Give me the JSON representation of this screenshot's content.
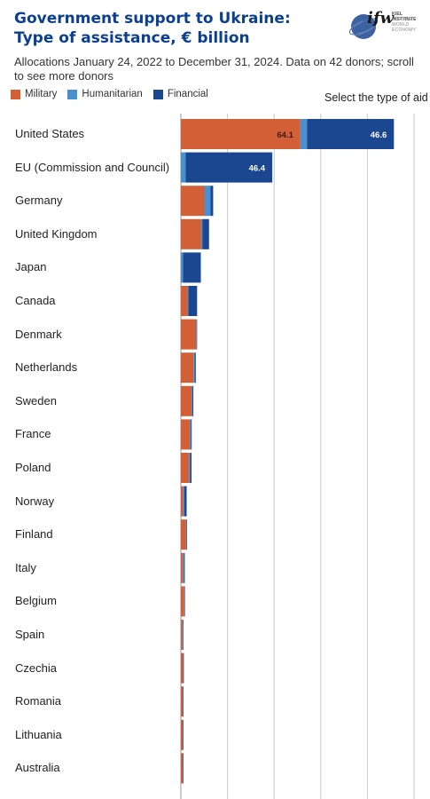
{
  "header": {
    "title": "Government support to Ukraine: Type of assistance, € billion",
    "subtitle": "Allocations January 24, 2022 to December 31, 2024. Data on 42 donors; scroll to see more donors",
    "logo_text": "ifw",
    "logo_line1": "KIEL INSTITUTE",
    "logo_line2": "FOR THE WORLD ECONOMY",
    "select_label": "Select the type of aid"
  },
  "legend": [
    {
      "label": "Military",
      "color": "#d35f37"
    },
    {
      "label": "Humanitarian",
      "color": "#4a90cf"
    },
    {
      "label": "Financial",
      "color": "#1b4791"
    }
  ],
  "chart_data": {
    "type": "bar",
    "orientation": "horizontal",
    "stacked": true,
    "title": "Government support to Ukraine: Type of assistance, € billion",
    "xlim": [
      0,
      125
    ],
    "grid": true,
    "legend_position": "top-left",
    "categories": [
      "United States",
      "EU (Commission and Council)",
      "Germany",
      "United Kingdom",
      "Japan",
      "Canada",
      "Denmark",
      "Netherlands",
      "Sweden",
      "France",
      "Poland",
      "Norway",
      "Finland",
      "Italy",
      "Belgium",
      "Spain",
      "Czechia",
      "Romania",
      "Lithuania",
      "Australia"
    ],
    "series": [
      {
        "name": "Military",
        "color": "#d35f37",
        "values": [
          64.1,
          0,
          12.6,
          10.9,
          0,
          3.6,
          8.2,
          6.8,
          5.7,
          4.8,
          4.4,
          1.2,
          2.8,
          1.1,
          1.8,
          0.8,
          1.2,
          1.0,
          1.0,
          1.0
        ]
      },
      {
        "name": "Humanitarian",
        "color": "#4a90cf",
        "values": [
          3.5,
          2.6,
          3.3,
          0.6,
          1.2,
          0.4,
          0.2,
          0.6,
          0.5,
          0.5,
          0.5,
          0.7,
          0.2,
          0.5,
          0.1,
          0.3,
          0.1,
          0.1,
          0.1,
          0.1
        ]
      },
      {
        "name": "Financial",
        "color": "#1b4791",
        "values": [
          46.6,
          46.4,
          1.4,
          3.6,
          9.5,
          4.7,
          0.2,
          0.6,
          0.5,
          0.5,
          0.8,
          1.2,
          0.1,
          0.5,
          0.1,
          0.3,
          0.1,
          0.1,
          0.1,
          0.1
        ]
      }
    ],
    "data_labels": [
      {
        "category": "United States",
        "series": "Military",
        "text": "64.1"
      },
      {
        "category": "United States",
        "series": "Financial",
        "text": "46.6"
      },
      {
        "category": "EU (Commission and Council)",
        "series": "Financial",
        "text": "46.4"
      }
    ]
  }
}
